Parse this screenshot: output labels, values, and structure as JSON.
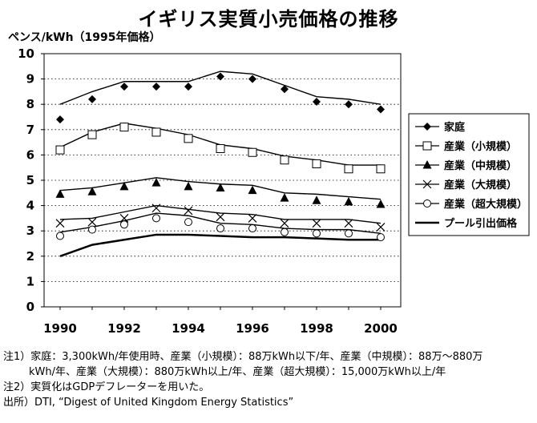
{
  "title": "イギリス実質小売価格の推移",
  "unit_label": "ペンス/kWh（1995年価格）",
  "notes": [
    "注1）家庭：3,300kWh/年使用時、産業（小規模）：88万kWh以下/年、産業（中規模）：88万～880万",
    "kWh/年、産業（大規模）：880万kWh以上/年、産業（超大規模）：15,000万kWh以上/年",
    "注2）実質化はGDPデフレーターを用いた。",
    "出所）DTI, “Digest of United Kingdom Energy Statistics”"
  ],
  "chart_data": {
    "type": "line",
    "x": [
      1990,
      1991,
      1992,
      1993,
      1994,
      1995,
      1996,
      1997,
      1998,
      1999,
      2000
    ],
    "x_ticks": [
      1990,
      1992,
      1994,
      1996,
      1998,
      2000
    ],
    "xlim": [
      1990,
      2000
    ],
    "ylim": [
      0,
      10
    ],
    "y_ticks": [
      0,
      1,
      2,
      3,
      4,
      5,
      6,
      7,
      8,
      9,
      10
    ],
    "grid": "horizontal dotted",
    "legend_position": "right",
    "series": [
      {
        "name": "家庭",
        "marker": "diamond",
        "values": [
          7.4,
          8.2,
          8.7,
          8.7,
          8.7,
          9.1,
          9.0,
          8.6,
          8.1,
          8.0,
          7.8
        ],
        "trend": [
          8.0,
          8.5,
          8.9,
          8.9,
          8.9,
          9.3,
          9.2,
          8.75,
          8.3,
          8.2,
          8.0
        ]
      },
      {
        "name": "産業（小規模）",
        "marker": "square-open",
        "values": [
          6.2,
          6.8,
          7.1,
          6.9,
          6.65,
          6.25,
          6.1,
          5.8,
          5.65,
          5.45,
          5.45
        ],
        "trend": [
          6.3,
          6.9,
          7.25,
          7.05,
          6.8,
          6.4,
          6.25,
          5.95,
          5.8,
          5.6,
          5.6
        ]
      },
      {
        "name": "産業（中規模）",
        "marker": "triangle",
        "values": [
          4.45,
          4.55,
          4.75,
          4.9,
          4.75,
          4.7,
          4.6,
          4.3,
          4.2,
          4.15,
          4.05
        ],
        "trend": [
          4.6,
          4.7,
          4.9,
          5.1,
          4.95,
          4.85,
          4.8,
          4.5,
          4.45,
          4.35,
          4.25
        ]
      },
      {
        "name": "産業（大規模）",
        "marker": "cross",
        "values": [
          3.3,
          3.35,
          3.5,
          3.9,
          3.8,
          3.55,
          3.5,
          3.3,
          3.3,
          3.3,
          3.15
        ],
        "trend": [
          3.45,
          3.5,
          3.75,
          4.0,
          3.85,
          3.7,
          3.65,
          3.45,
          3.45,
          3.45,
          3.3
        ]
      },
      {
        "name": "産業（超大規模）",
        "marker": "circle-open",
        "values": [
          2.8,
          3.05,
          3.25,
          3.5,
          3.35,
          3.1,
          3.1,
          2.95,
          2.9,
          2.9,
          2.75
        ],
        "trend": [
          2.95,
          3.15,
          3.4,
          3.7,
          3.6,
          3.3,
          3.25,
          3.1,
          3.05,
          3.05,
          2.9
        ]
      },
      {
        "name": "プール引出価格",
        "marker": "none",
        "thick": true,
        "values": [
          2.0,
          2.45,
          2.65,
          2.85,
          2.85,
          2.8,
          2.75,
          2.75,
          2.7,
          2.65,
          2.65
        ],
        "trend": [
          2.0,
          2.45,
          2.65,
          2.85,
          2.85,
          2.8,
          2.75,
          2.75,
          2.7,
          2.65,
          2.65
        ]
      }
    ]
  }
}
